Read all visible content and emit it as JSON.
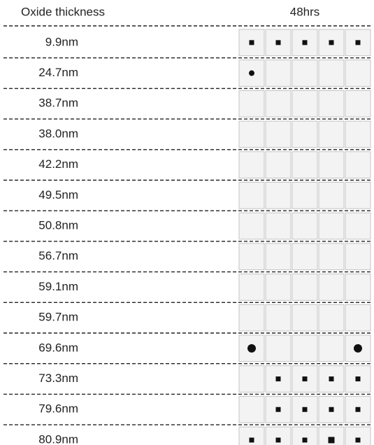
{
  "header": {
    "columns": [
      "Oxide thickness",
      "48hrs"
    ]
  },
  "rows": [
    "9.9nm",
    "24.7nm",
    "38.7nm",
    "38.0nm",
    "42.2nm",
    "49.5nm",
    "50.8nm",
    "56.7nm",
    "59.1nm",
    "59.7nm",
    "69.6nm",
    "73.3nm",
    "79.6nm",
    "80.9nm"
  ]
}
